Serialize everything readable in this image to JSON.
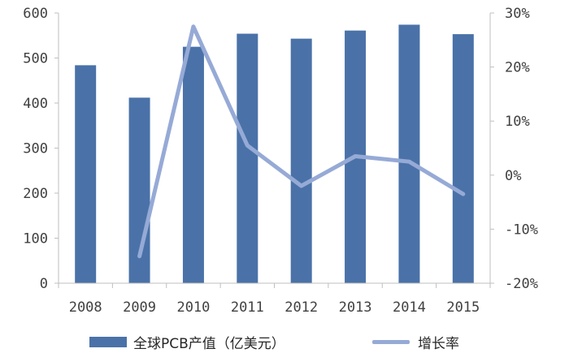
{
  "colors": {
    "bar": "#4a72a8",
    "line": "#96aad6",
    "axis": "#bfbfbf",
    "text": "#404040"
  },
  "chart_data": {
    "type": "bar",
    "categories": [
      "2008",
      "2009",
      "2010",
      "2011",
      "2012",
      "2013",
      "2014",
      "2015"
    ],
    "series": [
      {
        "name": "全球PCB产值（亿美元）",
        "type": "bar",
        "axis": "left",
        "values": [
          484,
          412,
          525,
          554,
          543,
          561,
          574,
          553
        ]
      },
      {
        "name": "增长率",
        "type": "line",
        "axis": "right",
        "values": [
          null,
          -15.0,
          27.5,
          5.5,
          -2.0,
          3.5,
          2.5,
          -3.5
        ]
      }
    ],
    "ylim": [
      0,
      600
    ],
    "yticks": [
      "0",
      "100",
      "200",
      "300",
      "400",
      "500",
      "600"
    ],
    "y2lim": [
      -20,
      30
    ],
    "y2ticks": [
      "-20%",
      "-10%",
      "0%",
      "10%",
      "20%",
      "30%"
    ],
    "legend_position": "bottom",
    "grid": false
  },
  "legend": {
    "bar_label": "全球PCB产值（亿美元）",
    "line_label": "增长率"
  }
}
